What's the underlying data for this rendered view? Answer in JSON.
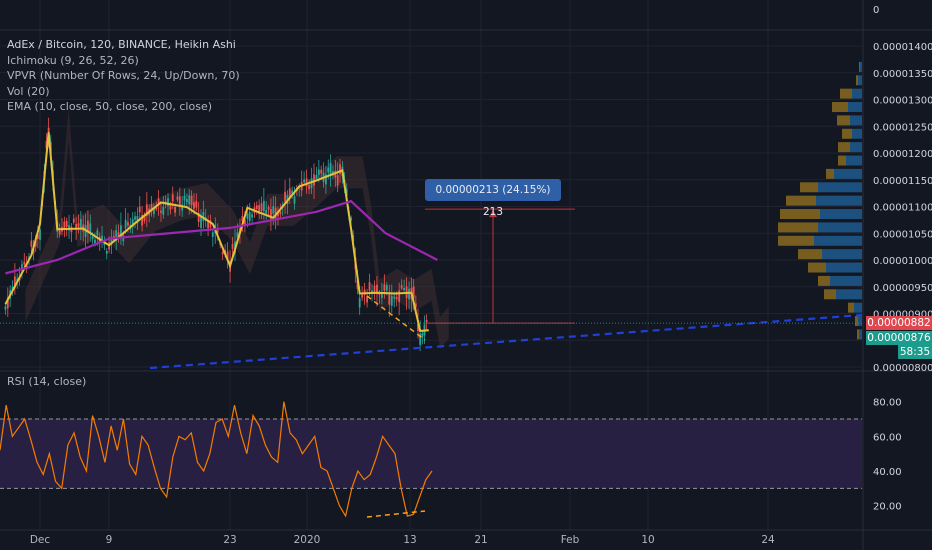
{
  "legend": {
    "title": "AdEx / Bitcoin, 120, BINANCE, Heikin Ashi",
    "ichimoku": "Ichimoku (9, 26, 52, 26)",
    "vpvr": "VPVR (Number Of Rows, 24, Up/Down, 70)",
    "vol": "Vol (20)",
    "ema": "EMA (10, close, 50, close, 200, close)"
  },
  "rsi_label": "RSI (14, close)",
  "measure_badge": "0.00000213 (24.15%) 213",
  "price_boxes": {
    "current": "0.00000882",
    "other": "0.00000876",
    "countdown": "58:35"
  },
  "colors": {
    "background": "#131722",
    "up_candle": "#26a69a",
    "down_candle": "#ef5350",
    "ema_fast": "#e2c23a",
    "ema_slow": "#9c27b0",
    "cloud": "#5a3a3a",
    "rsi_line": "#f57c00",
    "rsi_band": "#2a2146",
    "trendline": "#2140d6",
    "divergence": "#f6a31a",
    "vpvr_up": "#1e5a8e",
    "vpvr_down": "#8a6a1e",
    "measure": "#c2333a"
  },
  "chart_data": [
    {
      "type": "candlestick",
      "title": "AdEx / Bitcoin, 120, BINANCE, Heikin Ashi",
      "x_ticks": [
        "Dec",
        "9",
        "23",
        "2020",
        "13",
        "21",
        "Feb",
        "10",
        "24"
      ],
      "y_ticks": [
        "0",
        "0.00001400",
        "0.00001350",
        "0.00001300",
        "0.00001250",
        "0.00001200",
        "0.00001150",
        "0.00001100",
        "0.00001050",
        "0.00001000",
        "0.00000950",
        "0.00000900",
        "0.00000850",
        "0.00000800"
      ],
      "ylim": [
        8e-06,
        1.42e-05
      ],
      "price_path": [
        {
          "x": "Nov 27",
          "y": 9.1e-06
        },
        {
          "x": "Nov 30",
          "y": 1.02e-05
        },
        {
          "x": "Dec 1",
          "y": 1.06e-05
        },
        {
          "x": "Dec 2",
          "y": 1.25e-05
        },
        {
          "x": "Dec 3",
          "y": 1.05e-05
        },
        {
          "x": "Dec 6",
          "y": 1.07e-05
        },
        {
          "x": "Dec 9",
          "y": 1.02e-05
        },
        {
          "x": "Dec 12",
          "y": 1.08e-05
        },
        {
          "x": "Dec 15",
          "y": 1.1e-05
        },
        {
          "x": "Dec 18",
          "y": 1.11e-05
        },
        {
          "x": "Dec 21",
          "y": 1.06e-05
        },
        {
          "x": "Dec 23",
          "y": 1e-05
        },
        {
          "x": "Dec 25",
          "y": 1.09e-05
        },
        {
          "x": "Dec 28",
          "y": 1.09e-05
        },
        {
          "x": "Dec 31",
          "y": 1.13e-05
        },
        {
          "x": "Jan 2",
          "y": 1.16e-05
        },
        {
          "x": "Jan 5",
          "y": 1.16e-05
        },
        {
          "x": "Jan 6",
          "y": 1.07e-05
        },
        {
          "x": "Jan 7",
          "y": 9.3e-06
        },
        {
          "x": "Jan 9",
          "y": 9.5e-06
        },
        {
          "x": "Jan 11",
          "y": 9.3e-06
        },
        {
          "x": "Jan 13",
          "y": 9.5e-06
        },
        {
          "x": "Jan 14",
          "y": 8.6e-06
        },
        {
          "x": "Jan 15",
          "y": 8.8e-06
        }
      ],
      "ema_slow": [
        {
          "x": "Nov 27",
          "y": 9.75e-06
        },
        {
          "x": "Dec 3",
          "y": 1e-05
        },
        {
          "x": "Dec 9",
          "y": 1.04e-05
        },
        {
          "x": "Dec 23",
          "y": 1.06e-05
        },
        {
          "x": "Jan 2",
          "y": 1.09e-05
        },
        {
          "x": "Jan 6",
          "y": 1.11e-05
        },
        {
          "x": "Jan 10",
          "y": 1.05e-05
        },
        {
          "x": "Jan 16",
          "y": 1e-05
        }
      ],
      "vpvr_profile": [
        {
          "price": 1.36e-05,
          "up": 2,
          "down": 1
        },
        {
          "price": 1.335e-05,
          "up": 4,
          "down": 2
        },
        {
          "price": 1.31e-05,
          "up": 10,
          "down": 12
        },
        {
          "price": 1.285e-05,
          "up": 14,
          "down": 16
        },
        {
          "price": 1.26e-05,
          "up": 12,
          "down": 13
        },
        {
          "price": 1.235e-05,
          "up": 10,
          "down": 10
        },
        {
          "price": 1.21e-05,
          "up": 12,
          "down": 12
        },
        {
          "price": 1.185e-05,
          "up": 16,
          "down": 8
        },
        {
          "price": 1.16e-05,
          "up": 28,
          "down": 8
        },
        {
          "price": 1.135e-05,
          "up": 44,
          "down": 18
        },
        {
          "price": 1.11e-05,
          "up": 46,
          "down": 30
        },
        {
          "price": 1.085e-05,
          "up": 42,
          "down": 40
        },
        {
          "price": 1.06e-05,
          "up": 44,
          "down": 40
        },
        {
          "price": 1.035e-05,
          "up": 48,
          "down": 36
        },
        {
          "price": 1.01e-05,
          "up": 40,
          "down": 24
        },
        {
          "price": 9.85e-06,
          "up": 36,
          "down": 18
        },
        {
          "price": 9.6e-06,
          "up": 32,
          "down": 12
        },
        {
          "price": 9.35e-06,
          "up": 26,
          "down": 12
        },
        {
          "price": 9.1e-06,
          "up": 8,
          "down": 6
        },
        {
          "price": 8.85e-06,
          "up": 4,
          "down": 3
        },
        {
          "price": 8.6e-06,
          "up": 3,
          "down": 2
        }
      ],
      "measure": {
        "from": 8.82e-06,
        "to": 1.095e-05,
        "label": "0.00000213 (24.15%) 213"
      },
      "last_price": 8.82e-06
    },
    {
      "type": "line",
      "title": "RSI (14, close)",
      "y_ticks": [
        "80.00",
        "60.00",
        "40.00",
        "20.00"
      ],
      "ylim": [
        10,
        85
      ],
      "bands": [
        30,
        70
      ],
      "values": [
        52,
        78,
        60,
        65,
        70,
        58,
        45,
        38,
        50,
        34,
        30,
        55,
        62,
        48,
        40,
        72,
        60,
        45,
        66,
        52,
        70,
        44,
        38,
        60,
        55,
        42,
        30,
        25,
        48,
        60,
        58,
        62,
        45,
        40,
        50,
        68,
        70,
        60,
        78,
        62,
        50,
        72,
        66,
        55,
        48,
        45,
        80,
        62,
        58,
        50,
        55,
        60,
        42,
        40,
        30,
        20,
        14,
        30,
        40,
        35,
        38,
        48,
        60,
        55,
        50,
        30,
        14,
        15,
        25,
        35,
        40
      ]
    }
  ]
}
